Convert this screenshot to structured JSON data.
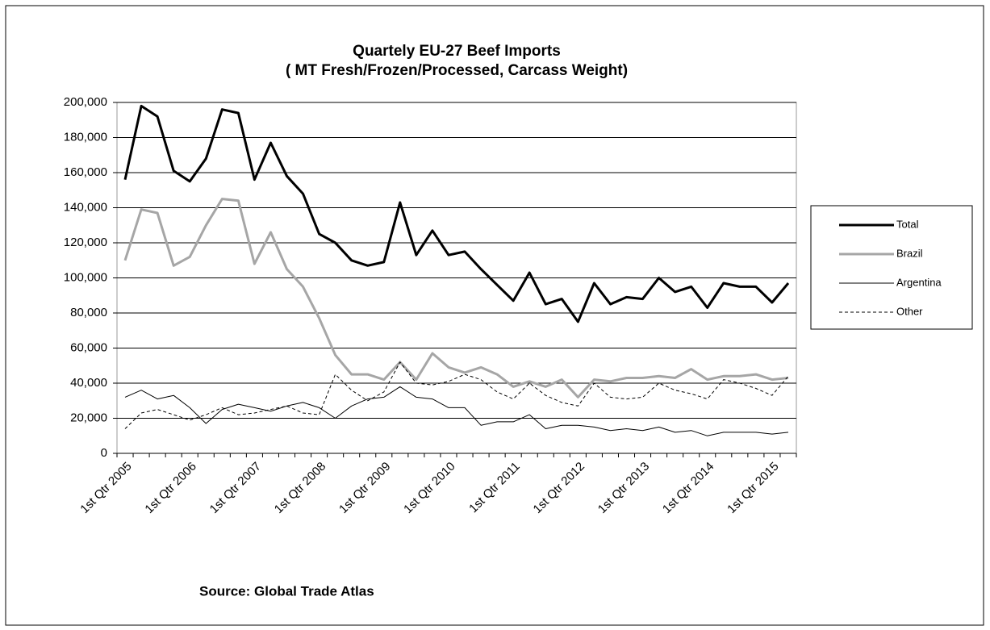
{
  "chart_data": {
    "type": "line",
    "title": "Quartely EU-27 Beef Imports",
    "subtitle": "( MT Fresh/Frozen/Processed, Carcass Weight)",
    "source": "Source: Global Trade Atlas",
    "categories": [
      "1st Qtr 2005",
      null,
      null,
      null,
      "1st Qtr 2006",
      null,
      null,
      null,
      "1st Qtr 2007",
      null,
      null,
      null,
      "1st Qtr 2008",
      null,
      null,
      null,
      "1st Qtr 2009",
      null,
      null,
      null,
      "1st Qtr 2010",
      null,
      null,
      null,
      "1st Qtr 2011",
      null,
      null,
      null,
      "1st Qtr 2012",
      null,
      null,
      null,
      "1st Qtr 2013",
      null,
      null,
      null,
      "1st Qtr 2014",
      null,
      null,
      null,
      "1st Qtr 2015",
      null
    ],
    "series": [
      {
        "name": "Total",
        "color": "#000000",
        "width": 3,
        "dashed": false,
        "values": [
          156000,
          198000,
          192000,
          161000,
          155000,
          168000,
          196000,
          194000,
          156000,
          177000,
          158000,
          148000,
          125000,
          120000,
          110000,
          107000,
          109000,
          143000,
          113000,
          127000,
          113000,
          115000,
          105000,
          96000,
          87000,
          103000,
          85000,
          88000,
          75000,
          97000,
          85000,
          89000,
          88000,
          100000,
          92000,
          95000,
          83000,
          97000,
          95000,
          95000,
          86000,
          97000
        ]
      },
      {
        "name": "Brazil",
        "color": "#a6a6a6",
        "width": 3,
        "dashed": false,
        "values": [
          110000,
          139000,
          137000,
          107000,
          112000,
          130000,
          145000,
          144000,
          108000,
          126000,
          105000,
          95000,
          77000,
          56000,
          45000,
          45000,
          42000,
          52000,
          42000,
          57000,
          49000,
          46000,
          49000,
          45000,
          38000,
          41000,
          38000,
          42000,
          32000,
          42000,
          41000,
          43000,
          43000,
          44000,
          43000,
          48000,
          42000,
          44000,
          44000,
          45000,
          42000,
          43000
        ]
      },
      {
        "name": "Argentina",
        "color": "#000000",
        "width": 1,
        "dashed": false,
        "values": [
          32000,
          36000,
          31000,
          33000,
          26000,
          17000,
          25000,
          28000,
          26000,
          24000,
          27000,
          29000,
          26000,
          20000,
          27000,
          31000,
          32000,
          38000,
          32000,
          31000,
          26000,
          26000,
          16000,
          18000,
          18000,
          22000,
          14000,
          16000,
          16000,
          15000,
          13000,
          14000,
          13000,
          15000,
          12000,
          13000,
          10000,
          12000,
          12000,
          12000,
          11000,
          12000
        ]
      },
      {
        "name": "Other",
        "color": "#000000",
        "width": 1,
        "dashed": true,
        "values": [
          14000,
          23000,
          25000,
          22000,
          19000,
          22000,
          26000,
          22000,
          23000,
          25000,
          27000,
          23000,
          22000,
          45000,
          36000,
          30000,
          35000,
          52000,
          40000,
          39000,
          41000,
          45000,
          42000,
          35000,
          31000,
          40000,
          33000,
          29000,
          27000,
          40000,
          32000,
          31000,
          32000,
          40000,
          36000,
          34000,
          31000,
          42000,
          40000,
          37000,
          33000,
          44000
        ]
      }
    ],
    "ylim": [
      0,
      200000
    ],
    "yticks": [
      0,
      {
        "value": 20000,
        "label": "20,000"
      },
      {
        "value": 40000,
        "label": "40,000"
      },
      {
        "value": 60000,
        "label": "60,000"
      },
      {
        "value": 80000,
        "label": "80,000"
      },
      {
        "value": 100000,
        "label": "100,000"
      },
      {
        "value": 120000,
        "label": "120,000"
      },
      {
        "value": 140000,
        "label": "140,000"
      },
      {
        "value": 160000,
        "label": "160,000"
      },
      {
        "value": 180000,
        "label": "180,000"
      },
      {
        "value": 200000,
        "label": "200,000"
      }
    ],
    "grid": true,
    "legend": "right"
  }
}
